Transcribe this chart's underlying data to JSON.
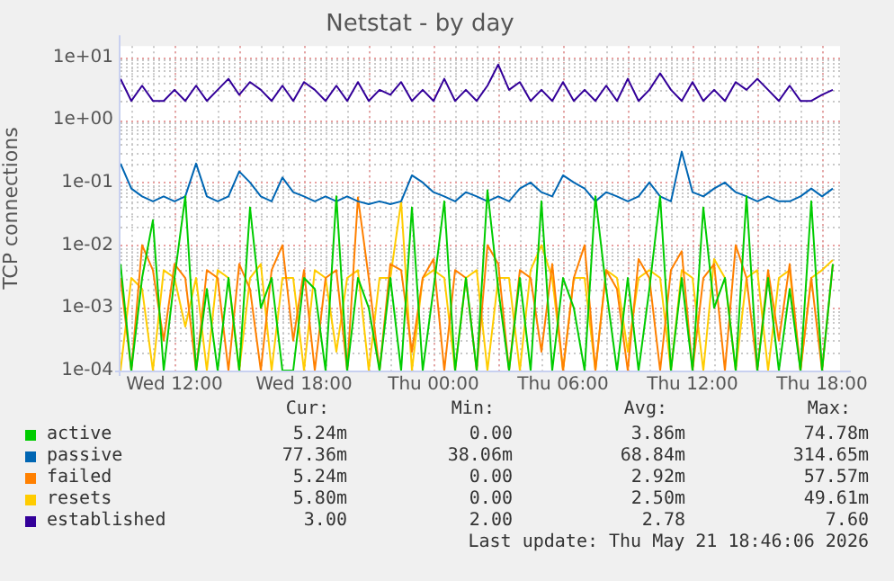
{
  "chart_data": {
    "type": "line",
    "title": "Netstat - by day",
    "ylabel": "TCP connections",
    "x": [
      "2026-05-20T09:30",
      "2026-05-20T10:00",
      "2026-05-20T10:30",
      "2026-05-20T11:00",
      "2026-05-20T11:30",
      "2026-05-20T12:00",
      "2026-05-20T12:30",
      "2026-05-20T13:00",
      "2026-05-20T13:30",
      "2026-05-20T14:00",
      "2026-05-20T14:30",
      "2026-05-20T15:00",
      "2026-05-20T15:30",
      "2026-05-20T16:00",
      "2026-05-20T16:30",
      "2026-05-20T17:00",
      "2026-05-20T17:30",
      "2026-05-20T18:00",
      "2026-05-20T18:30",
      "2026-05-20T19:00",
      "2026-05-20T19:30",
      "2026-05-20T20:00",
      "2026-05-20T20:30",
      "2026-05-20T21:00",
      "2026-05-20T21:30",
      "2026-05-20T22:00",
      "2026-05-20T22:30",
      "2026-05-20T23:00",
      "2026-05-20T23:30",
      "2026-05-21T00:00",
      "2026-05-21T00:30",
      "2026-05-21T01:00",
      "2026-05-21T01:30",
      "2026-05-21T02:00",
      "2026-05-21T02:30",
      "2026-05-21T03:00",
      "2026-05-21T03:30",
      "2026-05-21T04:00",
      "2026-05-21T04:30",
      "2026-05-21T05:00",
      "2026-05-21T05:30",
      "2026-05-21T06:00",
      "2026-05-21T06:30",
      "2026-05-21T07:00",
      "2026-05-21T07:30",
      "2026-05-21T08:00",
      "2026-05-21T08:30",
      "2026-05-21T09:00",
      "2026-05-21T09:30",
      "2026-05-21T10:00",
      "2026-05-21T10:30",
      "2026-05-21T11:00",
      "2026-05-21T11:30",
      "2026-05-21T12:00",
      "2026-05-21T12:30",
      "2026-05-21T13:00",
      "2026-05-21T13:30",
      "2026-05-21T14:00",
      "2026-05-21T14:30",
      "2026-05-21T15:00",
      "2026-05-21T15:30",
      "2026-05-21T16:00",
      "2026-05-21T16:30",
      "2026-05-21T17:00",
      "2026-05-21T17:30",
      "2026-05-21T18:00",
      "2026-05-21T18:30"
    ],
    "xlim": [
      "2026-05-20T09:30",
      "2026-05-21T18:50"
    ],
    "xticks": [
      {
        "value": "2026-05-20T12:00",
        "label": "Wed 12:00"
      },
      {
        "value": "2026-05-20T15:00",
        "label": null
      },
      {
        "value": "2026-05-20T18:00",
        "label": "Wed 18:00"
      },
      {
        "value": "2026-05-20T21:00",
        "label": null
      },
      {
        "value": "2026-05-21T00:00",
        "label": "Thu 00:00"
      },
      {
        "value": "2026-05-21T03:00",
        "label": null
      },
      {
        "value": "2026-05-21T06:00",
        "label": "Thu 06:00"
      },
      {
        "value": "2026-05-21T09:00",
        "label": null
      },
      {
        "value": "2026-05-21T12:00",
        "label": "Thu 12:00"
      },
      {
        "value": "2026-05-21T15:00",
        "label": null
      },
      {
        "value": "2026-05-21T18:00",
        "label": "Thu 18:00"
      }
    ],
    "ylim": [
      0.0001,
      15
    ],
    "log": "y",
    "yticks": [
      {
        "value": 0.0001,
        "label": "1e-04"
      },
      {
        "value": 0.001,
        "label": "1e-03"
      },
      {
        "value": 0.01,
        "label": "1e-02"
      },
      {
        "value": 0.1,
        "label": "1e-01"
      },
      {
        "value": 1,
        "label": "1e+00"
      },
      {
        "value": 10,
        "label": "1e+01"
      }
    ],
    "grid": true,
    "legend": "bottom",
    "marker": "none",
    "line_style": "solid",
    "series": [
      {
        "name": "active",
        "color": "#00cc00",
        "values": [
          0.005,
          0.0001,
          0.003,
          0.025,
          0.0001,
          0.003,
          0.06,
          0.0001,
          0.002,
          0.0001,
          0.003,
          0.0001,
          0.04,
          0.001,
          0.003,
          0.0001,
          0.0001,
          0.003,
          0.002,
          0.0001,
          0.06,
          0.0001,
          0.003,
          0.001,
          0.0001,
          0.003,
          0.0001,
          0.04,
          0.0001,
          0.002,
          0.05,
          0.0001,
          0.003,
          0.0001,
          0.075,
          0.002,
          0.0001,
          0.003,
          0.0001,
          0.05,
          0.0001,
          0.003,
          0.001,
          0.0001,
          0.06,
          0.002,
          0.0001,
          0.003,
          0.0001,
          0.002,
          0.06,
          0.0001,
          0.003,
          0.0001,
          0.04,
          0.001,
          0.003,
          0.0001,
          0.06,
          0.0001,
          0.003,
          0.0001,
          0.002,
          0.0001,
          0.05,
          0.0001,
          0.005
        ]
      },
      {
        "name": "passive",
        "color": "#0066b3",
        "values": [
          0.2,
          0.08,
          0.06,
          0.05,
          0.06,
          0.05,
          0.06,
          0.2,
          0.06,
          0.05,
          0.06,
          0.15,
          0.1,
          0.06,
          0.05,
          0.12,
          0.07,
          0.06,
          0.05,
          0.06,
          0.05,
          0.06,
          0.05,
          0.045,
          0.05,
          0.045,
          0.05,
          0.13,
          0.1,
          0.07,
          0.06,
          0.05,
          0.07,
          0.06,
          0.05,
          0.06,
          0.05,
          0.08,
          0.1,
          0.07,
          0.06,
          0.13,
          0.1,
          0.08,
          0.05,
          0.07,
          0.06,
          0.05,
          0.06,
          0.1,
          0.06,
          0.05,
          0.31,
          0.07,
          0.06,
          0.08,
          0.1,
          0.07,
          0.06,
          0.05,
          0.06,
          0.05,
          0.05,
          0.06,
          0.08,
          0.06,
          0.08
        ]
      },
      {
        "name": "failed",
        "color": "#ff8000",
        "values": [
          0.003,
          0.0001,
          0.01,
          0.004,
          0.0003,
          0.005,
          0.003,
          0.0001,
          0.004,
          0.003,
          0.0001,
          0.005,
          0.002,
          0.0001,
          0.004,
          0.01,
          0.0003,
          0.004,
          0.0001,
          0.003,
          0.004,
          0.0001,
          0.0576,
          0.003,
          0.0001,
          0.005,
          0.004,
          0.0002,
          0.003,
          0.006,
          0.0001,
          0.004,
          0.003,
          0.0001,
          0.01,
          0.005,
          0.0001,
          0.004,
          0.003,
          0.0002,
          0.005,
          0.0001,
          0.003,
          0.01,
          0.0001,
          0.004,
          0.002,
          0.0001,
          0.006,
          0.003,
          0.0001,
          0.004,
          0.008,
          0.0001,
          0.003,
          0.005,
          0.0001,
          0.01,
          0.003,
          0.0001,
          0.004,
          0.0003,
          0.005,
          0.0001,
          0.003,
          0.0001,
          0.005
        ]
      },
      {
        "name": "resets",
        "color": "#ffcc00",
        "values": [
          0.0001,
          0.003,
          0.002,
          0.0001,
          0.004,
          0.003,
          0.0005,
          0.003,
          0.0001,
          0.004,
          0.003,
          0.0001,
          0.003,
          0.005,
          0.0001,
          0.003,
          0.003,
          0.0001,
          0.004,
          0.003,
          0.0002,
          0.003,
          0.004,
          0.0001,
          0.003,
          0.003,
          0.0496,
          0.0001,
          0.003,
          0.004,
          0.003,
          0.0001,
          0.003,
          0.004,
          0.0001,
          0.003,
          0.003,
          0.0001,
          0.004,
          0.01,
          0.003,
          0.0001,
          0.003,
          0.003,
          0.0001,
          0.004,
          0.003,
          0.0002,
          0.003,
          0.004,
          0.003,
          0.0001,
          0.004,
          0.003,
          0.0001,
          0.006,
          0.003,
          0.0001,
          0.003,
          0.004,
          0.0001,
          0.003,
          0.004,
          0.0001,
          0.003,
          0.004,
          0.0058
        ]
      },
      {
        "name": "established",
        "color": "#330099",
        "values": [
          4.5,
          2,
          3.5,
          2,
          2,
          3,
          2,
          3.5,
          2,
          3,
          4.5,
          2.5,
          4,
          3,
          2,
          3.5,
          2,
          4,
          3,
          2,
          3.5,
          2,
          4,
          2,
          3,
          2.5,
          4,
          2,
          3,
          2,
          4.5,
          2,
          3,
          2,
          3.5,
          7.6,
          3,
          4,
          2,
          3,
          2,
          4,
          2,
          3,
          2,
          3.5,
          2,
          4.5,
          2,
          3,
          5.5,
          3,
          2,
          4,
          2,
          3,
          2,
          4,
          3,
          4.5,
          3,
          2,
          3.5,
          2,
          2,
          2.5,
          3
        ]
      }
    ],
    "annotations": [
      "Cur:",
      "Min:",
      "Avg:",
      "Max:",
      "5.24m",
      "0.00",
      "3.86m",
      "74.78m",
      "77.36m",
      "38.06m",
      "68.84m",
      "314.65m",
      "5.24m",
      "0.00",
      "2.92m",
      "57.57m",
      "5.80m",
      "0.00",
      "2.50m",
      "49.61m",
      "3.00",
      "2.00",
      "2.78",
      "7.60",
      "Last update: Thu May 21 18:46:06 2026"
    ]
  }
}
